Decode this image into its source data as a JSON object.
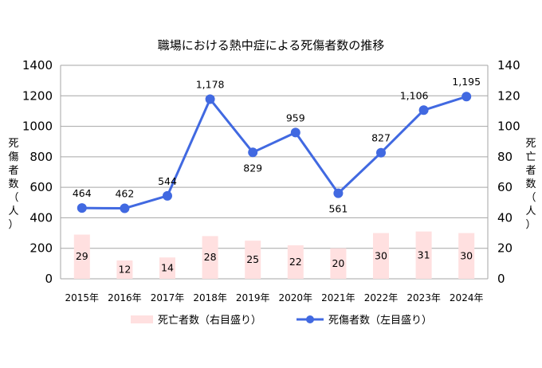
{
  "chart_data": {
    "type": "bar+line",
    "title": "職場における熱中症による死傷者数の推移",
    "categories": [
      "2015年",
      "2016年",
      "2017年",
      "2018年",
      "2019年",
      "2020年",
      "2021年",
      "2022年",
      "2023年",
      "2024年"
    ],
    "series": [
      {
        "name": "死亡者数（右目盛り）",
        "kind": "bar",
        "axis": "right",
        "color": "#ffe0e0",
        "values": [
          29,
          12,
          14,
          28,
          25,
          22,
          20,
          30,
          31,
          30
        ],
        "labels": [
          "29",
          "12",
          "14",
          "28",
          "25",
          "22",
          "20",
          "30",
          "31",
          "30"
        ]
      },
      {
        "name": "死傷者数（左目盛り）",
        "kind": "line",
        "axis": "left",
        "color": "#4169e1",
        "values": [
          464,
          462,
          544,
          1178,
          829,
          959,
          561,
          827,
          1106,
          1195
        ],
        "labels": [
          "464",
          "462",
          "544",
          "1,178",
          "829",
          "959",
          "561",
          "827",
          "1,106",
          "1,195"
        ]
      }
    ],
    "ylabel_left": "死傷者数（人）",
    "ylabel_right": "死亡者数（人）",
    "ylim_left": [
      0,
      1400
    ],
    "ylim_right": [
      0,
      140
    ],
    "yticks_left": [
      "0",
      "200",
      "400",
      "600",
      "800",
      "1000",
      "1200",
      "1400"
    ],
    "yticks_right": [
      "0",
      "20",
      "40",
      "60",
      "80",
      "100",
      "120",
      "140"
    ],
    "grid": true,
    "legend_position": "bottom"
  }
}
